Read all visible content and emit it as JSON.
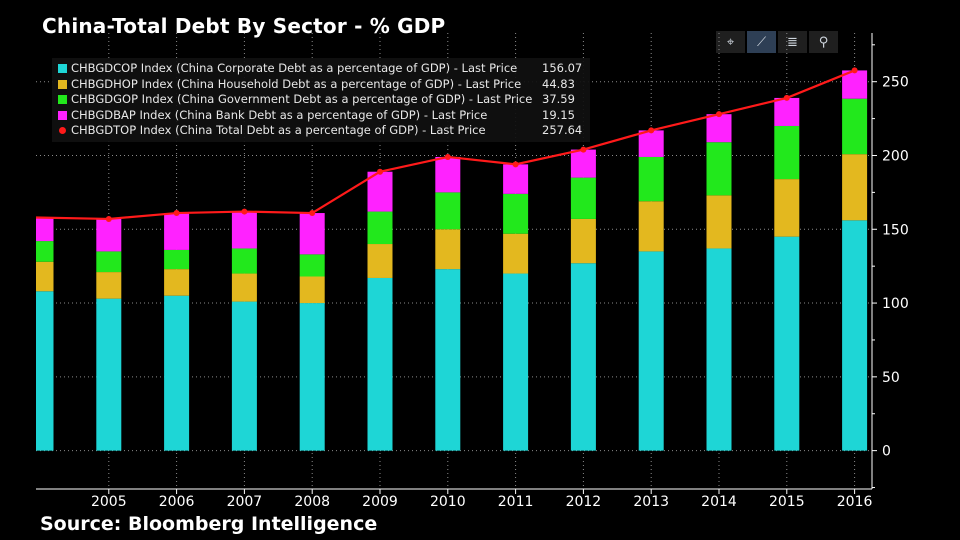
{
  "title": "China-Total Debt By Sector - % GDP",
  "source": "Source: Bloomberg Intelligence",
  "toolbar": {
    "tools": [
      {
        "name": "crosshair-icon",
        "glyph": "⌖"
      },
      {
        "name": "draw-line-icon",
        "glyph": "⟋"
      },
      {
        "name": "list-icon",
        "glyph": "≣"
      },
      {
        "name": "zoom-icon",
        "glyph": "⚲"
      }
    ]
  },
  "colors": {
    "corporate": "#1ed6d6",
    "household": "#e3b81f",
    "government": "#22e81c",
    "bank": "#ff22ff",
    "total": "#ff1a1a",
    "grid": "#8a8a8a",
    "axis": "#ffffff"
  },
  "legend": {
    "rows": [
      {
        "label": "CHBGDCOP Index (China Corporate Debt as a percentage of GDP) - Last Price",
        "value": "156.07",
        "color": "#1ed6d6",
        "marker": "square"
      },
      {
        "label": "CHBGDHOP Index (China Household Debt as a percentage of GDP) - Last Price",
        "value": "44.83",
        "color": "#e3b81f",
        "marker": "square"
      },
      {
        "label": "CHBGDGOP Index (China Government Debt as a percentage of GDP) - Last Price",
        "value": "37.59",
        "color": "#22e81c",
        "marker": "square"
      },
      {
        "label": "CHBGDBAP Index (China Bank Debt as a percentage of GDP) - Last Price",
        "value": "19.15",
        "color": "#ff22ff",
        "marker": "square"
      },
      {
        "label": "CHBGDTOP Index (China Total Debt as a percentage of GDP) - Last Price",
        "value": "257.64",
        "color": "#ff1a1a",
        "marker": "dot"
      }
    ]
  },
  "chart_data": {
    "type": "bar",
    "stacked": true,
    "title": "China-Total Debt By Sector - % GDP",
    "categories": [
      "",
      "2005",
      "2006",
      "2007",
      "2008",
      "2009",
      "2010",
      "2011",
      "2012",
      "2013",
      "2014",
      "2015",
      "2016"
    ],
    "x_tick_labels": [
      "2005",
      "2006",
      "2007",
      "2008",
      "2009",
      "2010",
      "2011",
      "2012",
      "2013",
      "2014",
      "2015",
      "2016"
    ],
    "y_ticks": [
      0,
      50,
      100,
      150,
      200,
      250
    ],
    "ylim": [
      -26,
      283
    ],
    "y_axis_side": "right",
    "grid": true,
    "series": [
      {
        "name": "CHBGDCOP Index (China Corporate Debt as a percentage of GDP)",
        "color": "#1ed6d6",
        "values": [
          108,
          103,
          105,
          101,
          100,
          117,
          123,
          120,
          127,
          135,
          137,
          145,
          156.07
        ]
      },
      {
        "name": "CHBGDHOP Index (China Household Debt as a percentage of GDP)",
        "color": "#e3b81f",
        "values": [
          20,
          18,
          18,
          19,
          18,
          23,
          27,
          27,
          30,
          34,
          36,
          39,
          44.83
        ]
      },
      {
        "name": "CHBGDGOP Index (China Government Debt as a percentage of GDP)",
        "color": "#22e81c",
        "values": [
          14,
          14,
          13,
          17,
          15,
          22,
          25,
          27,
          28,
          30,
          36,
          36,
          37.59
        ]
      },
      {
        "name": "CHBGDBAP Index (China Bank Debt as a percentage of GDP)",
        "color": "#ff22ff",
        "values": [
          16,
          22,
          25,
          25,
          28,
          27,
          24,
          20,
          19,
          18,
          19,
          19,
          19.15
        ]
      }
    ],
    "line_series": {
      "name": "CHBGDTOP Index (China Total Debt as a percentage of GDP)",
      "color": "#ff1a1a",
      "values": [
        158,
        157,
        161,
        162,
        161,
        189,
        199,
        194,
        204,
        217,
        228,
        239,
        257.64
      ]
    }
  }
}
